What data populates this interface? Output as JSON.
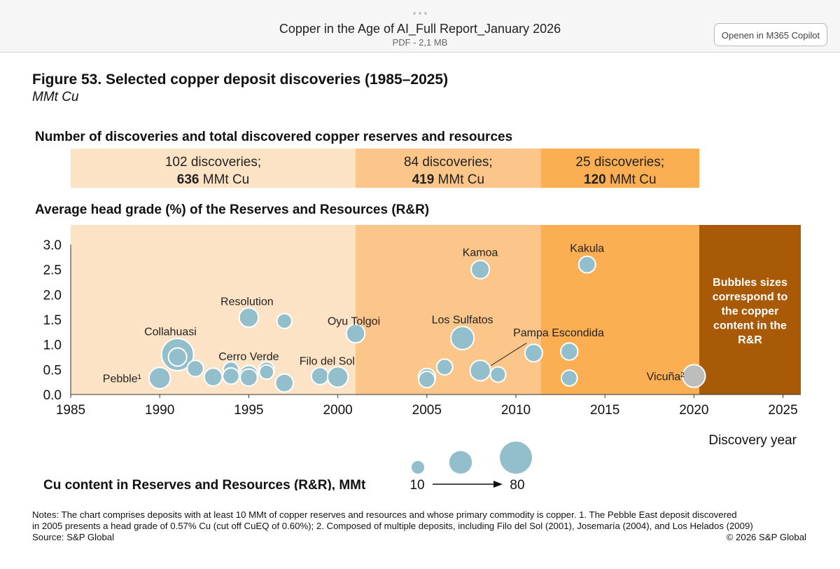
{
  "viewer": {
    "document_title": "Copper in the Age of AI_Full Report_January 2026",
    "document_meta": "PDF - 2,1 MB",
    "open_button_label": "Openen in M365 Copilot"
  },
  "figure": {
    "title": "Figure 53. Selected copper deposit discoveries (1985–2025)",
    "unit": "MMt Cu",
    "summary_heading": "Number of discoveries and total discovered copper reserves and resources",
    "grade_heading": "Average head grade (%) of the Reserves and Resources (R&R)",
    "legend_heading": "Cu content in Reserves  and Resources (R&R),  MMt",
    "notes": [
      "Notes: The chart comprises deposits with at least 10 MMt of copper reserves and resources and whose primary commodity is copper. 1. The Pebble East deposit discovered",
      "in 2005 presents a head grade of 0.57% Cu (cut off CuEQ of 0.60%); 2. Composed of multiple deposits, including Filo del Sol (2001), Josemaría (2004), and Los Helados (2009)",
      "Source: S&P Global"
    ],
    "copyright": "© 2026 S&P Global"
  },
  "chart_data": {
    "type": "scatter",
    "subtype": "bubble",
    "title": "Average head grade (%) of the Reserves and Resources (R&R)",
    "xlabel": "Discovery year",
    "ylabel": "",
    "xlim": [
      1985,
      2026
    ],
    "ylim": [
      0,
      3.0
    ],
    "x_ticks": [
      1985,
      1990,
      1995,
      2000,
      2005,
      2010,
      2015,
      2020,
      2025
    ],
    "y_ticks": [
      "0.0",
      "0.5",
      "1.0",
      "1.5",
      "2.0",
      "2.5",
      "3.0"
    ],
    "y_tick_values": [
      0,
      0.5,
      1.0,
      1.5,
      2.0,
      2.5,
      3.0
    ],
    "colors": {
      "period_1": "#fde3c6",
      "period_2": "#fcc589",
      "period_3": "#fbae52",
      "period_4": "#a95a06",
      "bubble": "#92bfcb",
      "bubble_grey": "#bdbdbd"
    },
    "periods": [
      {
        "from": 1985,
        "to": 2001,
        "discoveries": "102 discoveries;",
        "reserves_value": "636",
        "reserves_unit": "MMt Cu"
      },
      {
        "from": 2001,
        "to": 2011.4,
        "discoveries": "84 discoveries;",
        "reserves_value": "419",
        "reserves_unit": "MMt Cu"
      },
      {
        "from": 2011.4,
        "to": 2020.3,
        "discoveries": "25 discoveries;",
        "reserves_value": "120",
        "reserves_unit": "MMt Cu"
      }
    ],
    "note_panel": {
      "from": 2020.3,
      "text": [
        "Bubbles sizes",
        "correspond to",
        "the copper",
        "content in the",
        "R&R"
      ]
    },
    "bubbles": [
      {
        "year": 1990.0,
        "grade": 0.33,
        "size": 25
      },
      {
        "year": 1991.0,
        "grade": 0.8,
        "size": 80
      },
      {
        "year": 1991.0,
        "grade": 0.75,
        "size": 15
      },
      {
        "year": 1992.0,
        "grade": 0.52,
        "size": 10
      },
      {
        "year": 1993.0,
        "grade": 0.35,
        "size": 14
      },
      {
        "year": 1994.0,
        "grade": 0.5,
        "size": 8
      },
      {
        "year": 1994.0,
        "grade": 0.37,
        "size": 10
      },
      {
        "year": 1995.0,
        "grade": 1.54,
        "size": 18
      },
      {
        "year": 1995.0,
        "grade": 0.4,
        "size": 14
      },
      {
        "year": 1995.0,
        "grade": 0.34,
        "size": 12
      },
      {
        "year": 1996.0,
        "grade": 0.5,
        "size": 8
      },
      {
        "year": 1996.0,
        "grade": 0.45,
        "size": 6
      },
      {
        "year": 1997.0,
        "grade": 1.47,
        "size": 7
      },
      {
        "year": 1997.0,
        "grade": 0.23,
        "size": 14
      },
      {
        "year": 1999.0,
        "grade": 0.37,
        "size": 12
      },
      {
        "year": 2000.0,
        "grade": 0.35,
        "size": 22
      },
      {
        "year": 2001.0,
        "grade": 1.22,
        "size": 16
      },
      {
        "year": 2005.0,
        "grade": 0.35,
        "size": 12
      },
      {
        "year": 2005.0,
        "grade": 0.3,
        "size": 10
      },
      {
        "year": 2006.0,
        "grade": 0.55,
        "size": 9
      },
      {
        "year": 2007.0,
        "grade": 1.13,
        "size": 32
      },
      {
        "year": 2008.0,
        "grade": 2.5,
        "size": 15
      },
      {
        "year": 2008.0,
        "grade": 0.48,
        "size": 22
      },
      {
        "year": 2009.0,
        "grade": 0.4,
        "size": 8
      },
      {
        "year": 2011.0,
        "grade": 0.83,
        "size": 13
      },
      {
        "year": 2013.0,
        "grade": 0.86,
        "size": 12
      },
      {
        "year": 2013.0,
        "grade": 0.33,
        "size": 9
      },
      {
        "year": 2014.0,
        "grade": 2.6,
        "size": 11
      },
      {
        "year": 2020.0,
        "grade": 0.37,
        "size": 30,
        "grey": true
      }
    ],
    "annotations": [
      {
        "label": "Pebble¹",
        "year": 1986.8,
        "grade": 0.33,
        "anchor": "start"
      },
      {
        "label": "Collahuasi",
        "year": 1990.6,
        "grade": 1.27,
        "anchor": "middle"
      },
      {
        "label": "Resolution",
        "year": 1994.9,
        "grade": 1.87,
        "anchor": "middle"
      },
      {
        "label": "Cerro Verde",
        "year": 1995.0,
        "grade": 0.77,
        "anchor": "middle"
      },
      {
        "label": "Filo del Sol",
        "year": 1999.4,
        "grade": 0.68,
        "anchor": "middle"
      },
      {
        "label": "Oyu Tolgoi",
        "year": 2000.9,
        "grade": 1.48,
        "anchor": "middle"
      },
      {
        "label": "Los Sulfatos",
        "year": 2007.0,
        "grade": 1.51,
        "anchor": "middle"
      },
      {
        "label": "Pampa Escondida",
        "year": 2012.4,
        "grade": 1.25,
        "anchor": "middle"
      },
      {
        "label": "Kamoa",
        "year": 2008.0,
        "grade": 2.85,
        "anchor": "middle"
      },
      {
        "label": "Kakula",
        "year": 2014.0,
        "grade": 2.94,
        "anchor": "middle"
      },
      {
        "label": "Vicuña²",
        "year": 2018.4,
        "grade": 0.37,
        "anchor": "middle"
      }
    ],
    "bubble_legend": {
      "sizes": [
        10,
        30,
        80
      ],
      "min_label": "10",
      "max_label": "80"
    }
  }
}
